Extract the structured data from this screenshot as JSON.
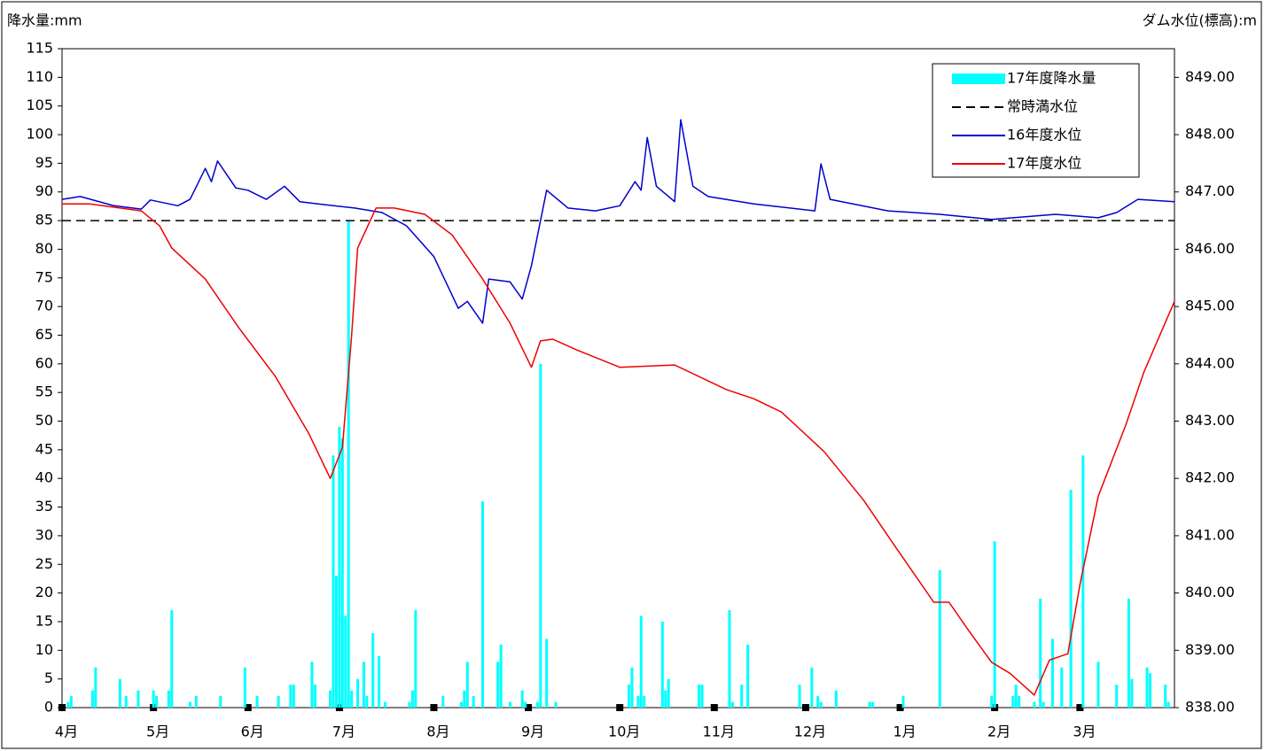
{
  "chart_data": {
    "type": "combo",
    "y_title": "降水量:mm",
    "y2_title": "ダム水位(標高):m",
    "xlim": [
      0,
      365
    ],
    "xticks": [
      {
        "value": 0,
        "label": "4月"
      },
      {
        "value": 30,
        "label": "5月"
      },
      {
        "value": 61,
        "label": "6月"
      },
      {
        "value": 91,
        "label": "7月"
      },
      {
        "value": 122,
        "label": "8月"
      },
      {
        "value": 153,
        "label": "9月"
      },
      {
        "value": 183,
        "label": "10月"
      },
      {
        "value": 214,
        "label": "11月"
      },
      {
        "value": 244,
        "label": "12月"
      },
      {
        "value": 275,
        "label": "1月"
      },
      {
        "value": 306,
        "label": "2月"
      },
      {
        "value": 334,
        "label": "3月"
      }
    ],
    "ylim": [
      0,
      115
    ],
    "yticks": [
      0,
      5,
      10,
      15,
      20,
      25,
      30,
      35,
      40,
      45,
      50,
      55,
      60,
      65,
      70,
      75,
      80,
      85,
      90,
      95,
      100,
      105,
      110,
      115
    ],
    "y2lim": [
      838,
      849.5
    ],
    "y2ticks": [
      {
        "value": 838,
        "label": "838.00"
      },
      {
        "value": 839,
        "label": "839.00"
      },
      {
        "value": 840,
        "label": "840.00"
      },
      {
        "value": 841,
        "label": "841.00"
      },
      {
        "value": 842,
        "label": "842.00"
      },
      {
        "value": 843,
        "label": "843.00"
      },
      {
        "value": 844,
        "label": "844.00"
      },
      {
        "value": 845,
        "label": "845.00"
      },
      {
        "value": 846,
        "label": "846.00"
      },
      {
        "value": 847,
        "label": "847.00"
      },
      {
        "value": 848,
        "label": "848.00"
      },
      {
        "value": 849,
        "label": "849.00"
      }
    ],
    "series": [
      {
        "name": "17年度降水量",
        "type": "bar",
        "color": "#00ffff",
        "x": [
          2,
          3,
          10,
          11,
          19,
          21,
          25,
          30,
          31,
          35,
          36,
          42,
          44,
          52,
          60,
          64,
          71,
          75,
          76,
          82,
          83,
          88,
          89,
          90,
          91,
          92,
          93,
          94,
          95,
          97,
          99,
          100,
          102,
          104,
          106,
          114,
          115,
          116,
          125,
          131,
          132,
          133,
          135,
          138,
          143,
          144,
          147,
          151,
          152,
          156,
          157,
          159,
          162,
          186,
          187,
          189,
          190,
          191,
          197,
          198,
          199,
          209,
          210,
          219,
          220,
          223,
          225,
          242,
          246,
          248,
          249,
          254,
          265,
          266,
          276,
          288,
          305,
          306,
          312,
          313,
          314,
          319,
          321,
          322,
          325,
          328,
          331,
          335,
          340,
          346,
          350,
          351,
          356,
          357,
          362,
          363
        ],
        "values": [
          1,
          2,
          3,
          7,
          5,
          2,
          3,
          3,
          2,
          3,
          17,
          1,
          2,
          2,
          7,
          2,
          2,
          4,
          4,
          8,
          4,
          3,
          44,
          23,
          49,
          47,
          16,
          85,
          3,
          5,
          8,
          2,
          13,
          9,
          1,
          1,
          3,
          17,
          2,
          1,
          3,
          8,
          2,
          36,
          8,
          11,
          1,
          3,
          1,
          1,
          60,
          12,
          1,
          4,
          7,
          2,
          16,
          2,
          15,
          3,
          5,
          4,
          4,
          17,
          1,
          4,
          11,
          4,
          7,
          2,
          1,
          3,
          1,
          1,
          2,
          24,
          2,
          29,
          2,
          4,
          2,
          1,
          19,
          1,
          12,
          7,
          38,
          44,
          8,
          4,
          19,
          5,
          7,
          6,
          4,
          1
        ]
      },
      {
        "name": "常時満水位",
        "type": "hline",
        "axis": "y2",
        "color": "#000000",
        "value": 846.5
      },
      {
        "name": "16年度水位",
        "type": "line",
        "axis": "y2",
        "color": "#0000cc",
        "x": [
          0,
          6,
          17,
          26,
          29,
          38,
          42,
          47,
          49,
          51,
          57,
          61,
          67,
          73,
          78,
          84,
          96,
          105,
          113,
          122,
          130,
          133,
          138,
          140,
          147,
          151,
          154,
          159,
          166,
          175,
          183,
          188,
          190,
          192,
          195,
          201,
          203,
          207,
          212,
          227,
          247,
          249,
          252,
          271,
          288,
          305,
          326,
          340,
          346,
          353,
          365
        ],
        "values": [
          846.87,
          846.92,
          846.76,
          846.7,
          846.86,
          846.76,
          846.87,
          847.41,
          847.18,
          847.54,
          847.07,
          847.03,
          846.87,
          847.1,
          846.83,
          846.79,
          846.72,
          846.64,
          846.41,
          845.87,
          844.97,
          845.09,
          844.71,
          845.48,
          845.43,
          845.13,
          845.71,
          847.03,
          846.72,
          846.67,
          846.76,
          847.18,
          847.03,
          847.95,
          847.1,
          846.83,
          848.26,
          847.1,
          846.92,
          846.79,
          846.67,
          847.49,
          846.87,
          846.67,
          846.61,
          846.52,
          846.61,
          846.55,
          846.64,
          846.87,
          846.83
        ]
      },
      {
        "name": "17年度水位",
        "type": "line",
        "axis": "y2",
        "color": "#ee0000",
        "x": [
          0,
          9,
          26,
          32,
          36,
          47,
          58,
          70,
          81,
          88,
          92,
          95,
          97,
          103,
          109,
          119,
          128,
          138,
          147,
          154,
          157,
          161,
          169,
          183,
          201,
          218,
          227,
          236,
          250,
          263,
          273,
          286,
          291,
          297,
          305,
          311,
          319,
          324,
          330,
          334,
          340,
          349,
          355,
          365
        ],
        "values": [
          846.79,
          846.79,
          846.67,
          846.41,
          846.02,
          845.48,
          844.63,
          843.78,
          842.78,
          842.0,
          842.54,
          844.48,
          846.02,
          846.72,
          846.72,
          846.61,
          846.25,
          845.48,
          844.71,
          843.94,
          844.4,
          844.43,
          844.24,
          843.94,
          843.98,
          843.55,
          843.39,
          843.16,
          842.47,
          841.62,
          840.84,
          839.84,
          839.84,
          839.38,
          838.79,
          838.6,
          838.22,
          838.83,
          838.94,
          840.15,
          841.69,
          842.93,
          843.86,
          845.09
        ]
      }
    ]
  }
}
